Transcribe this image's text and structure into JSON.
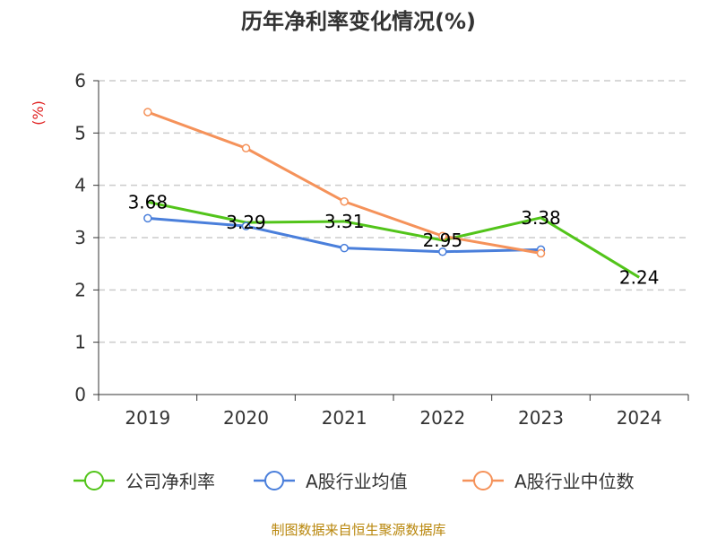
{
  "chart_data": {
    "type": "line",
    "title": "历年净利率变化情况(%)",
    "ylabel": "(%)",
    "xlabel": "",
    "categories": [
      "2019",
      "2020",
      "2021",
      "2022",
      "2023",
      "2024"
    ],
    "ylim": [
      0,
      6
    ],
    "yticks": [
      "0",
      "1",
      "2",
      "3",
      "4",
      "5",
      "6"
    ],
    "grid": true,
    "legend_position": "bottom",
    "series": [
      {
        "name": "公司净利率",
        "color": "#52c41a",
        "values": [
          3.68,
          3.29,
          3.31,
          2.95,
          3.38,
          2.24
        ],
        "data_labels": [
          "3.68",
          "3.29",
          "3.31",
          "2.95",
          "3.38",
          "2.24"
        ]
      },
      {
        "name": "A股行业均值",
        "color": "#4a7fdb",
        "values": [
          3.37,
          3.22,
          2.8,
          2.73,
          2.77,
          null
        ]
      },
      {
        "name": "A股行业中位数",
        "color": "#f5925a",
        "values": [
          5.4,
          4.71,
          3.69,
          3.03,
          2.7,
          null
        ]
      }
    ]
  },
  "footer": {
    "source": "制图数据来自恒生聚源数据库"
  }
}
